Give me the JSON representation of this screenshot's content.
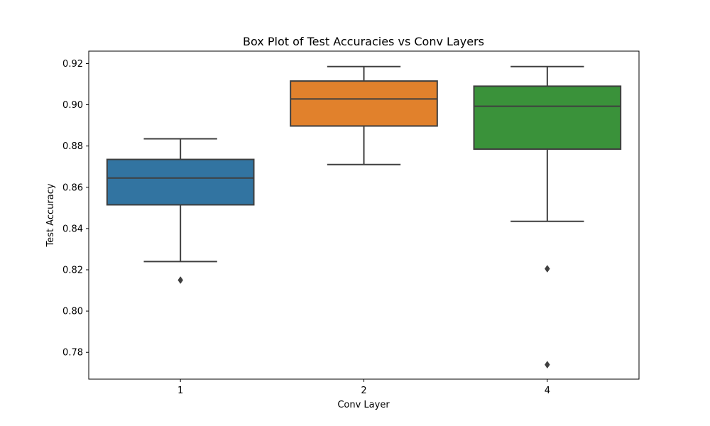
{
  "chart_data": {
    "type": "box",
    "title": "Box Plot of Test Accuracies vs Conv Layers",
    "xlabel": "Conv Layer",
    "ylabel": "Test Accuracy",
    "categories": [
      "1",
      "2",
      "4"
    ],
    "ylim": [
      0.767,
      0.926
    ],
    "yticks": [
      0.78,
      0.8,
      0.82,
      0.84,
      0.86,
      0.88,
      0.9,
      0.92
    ],
    "ytick_labels": [
      "0.78",
      "0.80",
      "0.82",
      "0.84",
      "0.86",
      "0.88",
      "0.90",
      "0.92"
    ],
    "grid": false,
    "boxes": [
      {
        "category": "1",
        "color": "#3274a1",
        "whisker_low": 0.824,
        "q1": 0.8515,
        "median": 0.8645,
        "q3": 0.8735,
        "whisker_high": 0.8835,
        "outliers": [
          0.815
        ]
      },
      {
        "category": "2",
        "color": "#e1812c",
        "whisker_low": 0.871,
        "q1": 0.8897,
        "median": 0.9028,
        "q3": 0.9115,
        "whisker_high": 0.9185,
        "outliers": []
      },
      {
        "category": "4",
        "color": "#3a923a",
        "whisker_low": 0.8435,
        "q1": 0.8785,
        "median": 0.8993,
        "q3": 0.909,
        "whisker_high": 0.9185,
        "outliers": [
          0.8205,
          0.774
        ]
      }
    ]
  }
}
